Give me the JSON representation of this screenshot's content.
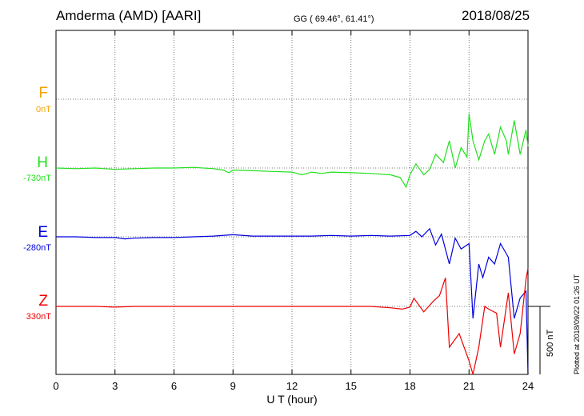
{
  "header": {
    "station": "Amderma (AMD)  [AARI]",
    "coordinates": "GG ( 69.46°,  61.41°)",
    "date": "2018/08/25"
  },
  "side_note": "Plotted at 2018/09/22 01:26 UT",
  "scale_label": "500 nT",
  "chart_data": {
    "type": "line",
    "xlabel": "U T (hour)",
    "xlim": [
      0,
      24
    ],
    "xticks": [
      0,
      3,
      6,
      9,
      12,
      15,
      18,
      21,
      24
    ],
    "xtick_labels": [
      "0",
      "3",
      "6",
      "9",
      "12",
      "15",
      "18",
      "21",
      "24"
    ],
    "grid": true,
    "scale_bar_nT": 500,
    "components": [
      {
        "name": "F",
        "baseline_label": "0nT",
        "color": "#f4a300",
        "values": []
      },
      {
        "name": "H",
        "baseline_label": "-730nT",
        "color": "#22e01e",
        "points": [
          [
            0,
            0
          ],
          [
            1,
            -5
          ],
          [
            2,
            0
          ],
          [
            3,
            -10
          ],
          [
            4,
            -5
          ],
          [
            5,
            0
          ],
          [
            6,
            0
          ],
          [
            7,
            5
          ],
          [
            8,
            -5
          ],
          [
            8.5,
            -15
          ],
          [
            8.8,
            -35
          ],
          [
            9,
            -15
          ],
          [
            10,
            -20
          ],
          [
            11,
            -25
          ],
          [
            12,
            -30
          ],
          [
            12.5,
            -50
          ],
          [
            13,
            -30
          ],
          [
            13.5,
            -40
          ],
          [
            14,
            -30
          ],
          [
            15,
            -35
          ],
          [
            16,
            -40
          ],
          [
            17,
            -50
          ],
          [
            17.5,
            -70
          ],
          [
            17.8,
            -140
          ],
          [
            18,
            -50
          ],
          [
            18.3,
            30
          ],
          [
            18.7,
            -50
          ],
          [
            19,
            -10
          ],
          [
            19.3,
            100
          ],
          [
            19.7,
            40
          ],
          [
            20,
            200
          ],
          [
            20.3,
            0
          ],
          [
            20.6,
            150
          ],
          [
            20.9,
            80
          ],
          [
            21,
            400
          ],
          [
            21.2,
            200
          ],
          [
            21.5,
            60
          ],
          [
            21.8,
            200
          ],
          [
            22,
            250
          ],
          [
            22.3,
            100
          ],
          [
            22.6,
            300
          ],
          [
            22.9,
            200
          ],
          [
            23,
            100
          ],
          [
            23.3,
            350
          ],
          [
            23.6,
            100
          ],
          [
            23.9,
            280
          ],
          [
            24,
            160
          ]
        ]
      },
      {
        "name": "E",
        "baseline_label": "-280nT",
        "color": "#0000dd",
        "points": [
          [
            0,
            0
          ],
          [
            1,
            0
          ],
          [
            2,
            -5
          ],
          [
            3,
            -5
          ],
          [
            3.5,
            -15
          ],
          [
            4,
            -10
          ],
          [
            5,
            -5
          ],
          [
            6,
            -5
          ],
          [
            7,
            0
          ],
          [
            8,
            5
          ],
          [
            9,
            15
          ],
          [
            10,
            5
          ],
          [
            11,
            5
          ],
          [
            12,
            5
          ],
          [
            13,
            5
          ],
          [
            14,
            10
          ],
          [
            15,
            5
          ],
          [
            16,
            10
          ],
          [
            17,
            5
          ],
          [
            18,
            10
          ],
          [
            18.3,
            40
          ],
          [
            18.6,
            0
          ],
          [
            19,
            60
          ],
          [
            19.3,
            -60
          ],
          [
            19.6,
            20
          ],
          [
            20,
            -200
          ],
          [
            20.3,
            -10
          ],
          [
            20.6,
            -90
          ],
          [
            21,
            -50
          ],
          [
            21.2,
            -600
          ],
          [
            21.5,
            -200
          ],
          [
            21.7,
            -300
          ],
          [
            22,
            -150
          ],
          [
            22.3,
            -200
          ],
          [
            22.6,
            -50
          ],
          [
            23,
            -150
          ],
          [
            23.3,
            -600
          ],
          [
            23.6,
            -450
          ],
          [
            23.9,
            -400
          ],
          [
            24,
            -1100
          ]
        ]
      },
      {
        "name": "Z",
        "baseline_label": "330nT",
        "color": "#ee0000",
        "points": [
          [
            0,
            0
          ],
          [
            1,
            0
          ],
          [
            2,
            0
          ],
          [
            3,
            -5
          ],
          [
            4,
            0
          ],
          [
            5,
            0
          ],
          [
            6,
            0
          ],
          [
            7,
            0
          ],
          [
            8,
            0
          ],
          [
            9,
            0
          ],
          [
            10,
            0
          ],
          [
            11,
            0
          ],
          [
            12,
            0
          ],
          [
            13,
            0
          ],
          [
            14,
            0
          ],
          [
            15,
            0
          ],
          [
            16,
            0
          ],
          [
            17,
            -10
          ],
          [
            17.6,
            -20
          ],
          [
            18,
            -5
          ],
          [
            18.2,
            60
          ],
          [
            18.7,
            -40
          ],
          [
            19.2,
            40
          ],
          [
            19.5,
            80
          ],
          [
            19.8,
            210
          ],
          [
            20,
            -300
          ],
          [
            20.5,
            -200
          ],
          [
            21,
            -400
          ],
          [
            21.2,
            -550
          ],
          [
            21.5,
            -300
          ],
          [
            21.8,
            0
          ],
          [
            22,
            -20
          ],
          [
            22.4,
            -50
          ],
          [
            22.6,
            -300
          ],
          [
            23,
            100
          ],
          [
            23.3,
            -350
          ],
          [
            23.6,
            -200
          ],
          [
            23.9,
            200
          ],
          [
            24,
            280
          ]
        ]
      }
    ]
  }
}
